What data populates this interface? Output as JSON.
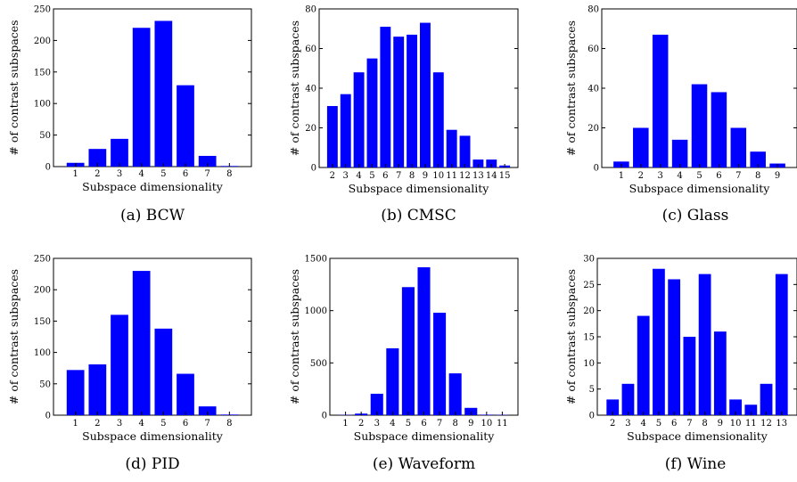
{
  "chart_data": [
    {
      "type": "bar",
      "caption": "(a)  BCW",
      "xlabel": "Subspace dimensionality",
      "ylabel": "# of contrast subspaces",
      "categories": [
        "1",
        "2",
        "3",
        "4",
        "5",
        "6",
        "7",
        "8"
      ],
      "values": [
        6,
        28,
        44,
        220,
        231,
        129,
        17,
        1
      ],
      "ylim": [
        0,
        250
      ],
      "yticks": [
        0,
        50,
        100,
        150,
        200,
        250
      ],
      "bar_color": "#0000ff"
    },
    {
      "type": "bar",
      "caption": "(b)  CMSC",
      "xlabel": "Subspace dimensionality",
      "ylabel": "# of contrast subspaces",
      "categories": [
        "2",
        "3",
        "4",
        "5",
        "6",
        "7",
        "8",
        "9",
        "10",
        "11",
        "12",
        "13",
        "14",
        "15"
      ],
      "values": [
        31,
        37,
        48,
        55,
        71,
        66,
        67,
        73,
        48,
        19,
        16,
        4,
        4,
        1
      ],
      "ylim": [
        0,
        80
      ],
      "yticks": [
        0,
        20,
        40,
        60,
        80
      ],
      "bar_color": "#0000ff"
    },
    {
      "type": "bar",
      "caption": "(c)  Glass",
      "xlabel": "Subspace dimensionality",
      "ylabel": "# of contrast subspaces",
      "categories": [
        "1",
        "2",
        "3",
        "4",
        "5",
        "6",
        "7",
        "8",
        "9"
      ],
      "values": [
        3,
        20,
        67,
        14,
        42,
        38,
        20,
        8,
        2
      ],
      "ylim": [
        0,
        80
      ],
      "yticks": [
        0,
        20,
        40,
        60,
        80
      ],
      "bar_color": "#0000ff"
    },
    {
      "type": "bar",
      "caption": "(d)  PID",
      "xlabel": "Subspace dimensionality",
      "ylabel": "# of contrast subspaces",
      "categories": [
        "1",
        "2",
        "3",
        "4",
        "5",
        "6",
        "7",
        "8"
      ],
      "values": [
        72,
        81,
        160,
        230,
        138,
        66,
        14,
        1
      ],
      "ylim": [
        0,
        250
      ],
      "yticks": [
        0,
        50,
        100,
        150,
        200,
        250
      ],
      "bar_color": "#0000ff"
    },
    {
      "type": "bar",
      "caption": "(e)  Waveform",
      "xlabel": "Subspace dimensionality",
      "ylabel": "# of contrast subspaces",
      "categories": [
        "1",
        "2",
        "3",
        "4",
        "5",
        "6",
        "7",
        "8",
        "9",
        "10",
        "11"
      ],
      "values": [
        3,
        15,
        205,
        640,
        1225,
        1415,
        980,
        400,
        70,
        5,
        3
      ],
      "ylim": [
        0,
        1500
      ],
      "yticks": [
        0,
        500,
        1000,
        1500
      ],
      "bar_color": "#0000ff"
    },
    {
      "type": "bar",
      "caption": "(f)  Wine",
      "xlabel": "Subspace dimensionality",
      "ylabel": "# of contrast subspaces",
      "categories": [
        "2",
        "3",
        "4",
        "5",
        "6",
        "7",
        "8",
        "9",
        "10",
        "11",
        "12",
        "13"
      ],
      "values": [
        3,
        6,
        19,
        28,
        26,
        15,
        27,
        16,
        3,
        2,
        6,
        27
      ],
      "ylim": [
        0,
        30
      ],
      "yticks": [
        0,
        5,
        10,
        15,
        20,
        25,
        30
      ],
      "bar_color": "#0000ff"
    }
  ]
}
